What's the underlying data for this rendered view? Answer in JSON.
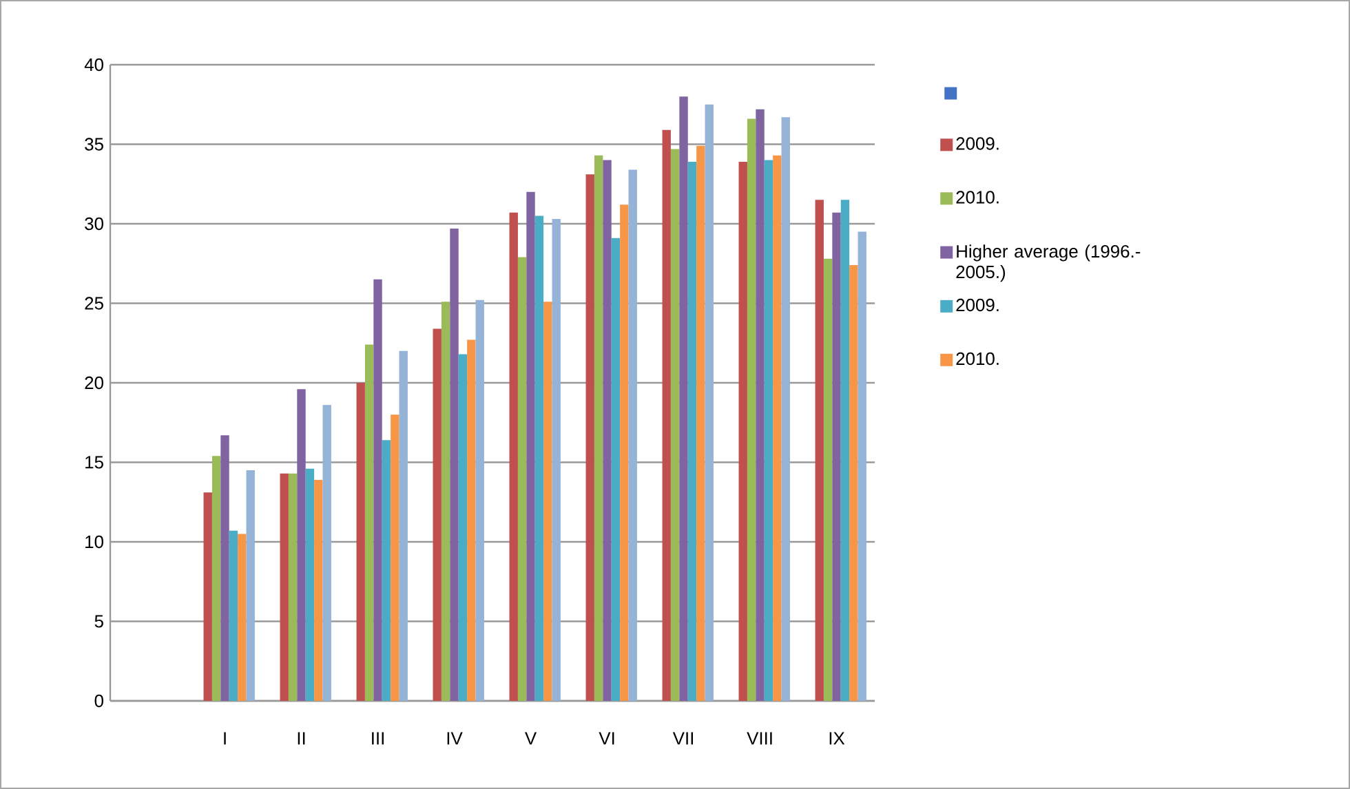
{
  "chart_data": {
    "type": "bar",
    "categories": [
      null,
      "I",
      "II",
      "III",
      "IV",
      "V",
      "VI",
      "VII",
      "VIII",
      "IX"
    ],
    "series": [
      {
        "color": "#4472c4",
        "values": [
          0,
          null,
          null,
          null,
          null,
          null,
          null,
          null,
          null,
          null
        ]
      },
      {
        "name": "2009.",
        "color": "#c0504d",
        "values": [
          0,
          13.1,
          14.3,
          20.0,
          23.4,
          30.7,
          33.1,
          35.9,
          33.9,
          31.5
        ]
      },
      {
        "name": "2010.",
        "color": "#9bbb59",
        "values": [
          0,
          15.4,
          14.3,
          22.4,
          25.1,
          27.9,
          34.3,
          34.7,
          36.6,
          27.8
        ]
      },
      {
        "name": "Higher average (1996.-2005.)",
        "color": "#8064a2",
        "values": [
          0,
          16.7,
          19.6,
          26.5,
          29.7,
          32.0,
          34.0,
          38.0,
          37.2,
          30.7
        ]
      },
      {
        "name": "2009.",
        "color": "#4bacc6",
        "values": [
          0,
          10.7,
          14.6,
          16.4,
          21.8,
          30.5,
          29.1,
          33.9,
          34.0,
          31.5
        ]
      },
      {
        "name": "2010.",
        "color": "#f79646",
        "values": [
          0,
          10.5,
          13.9,
          18.0,
          22.7,
          25.1,
          31.2,
          34.9,
          34.3,
          27.4
        ]
      },
      {
        "color": "#95b3d7",
        "values": [
          0,
          14.5,
          18.6,
          22.0,
          25.2,
          30.3,
          33.4,
          37.5,
          36.7,
          29.5
        ]
      }
    ],
    "ylim": [
      0,
      40
    ],
    "yticks": [
      0,
      5,
      10,
      15,
      20,
      25,
      30,
      35,
      40
    ],
    "grid": "y",
    "legend": "right"
  }
}
